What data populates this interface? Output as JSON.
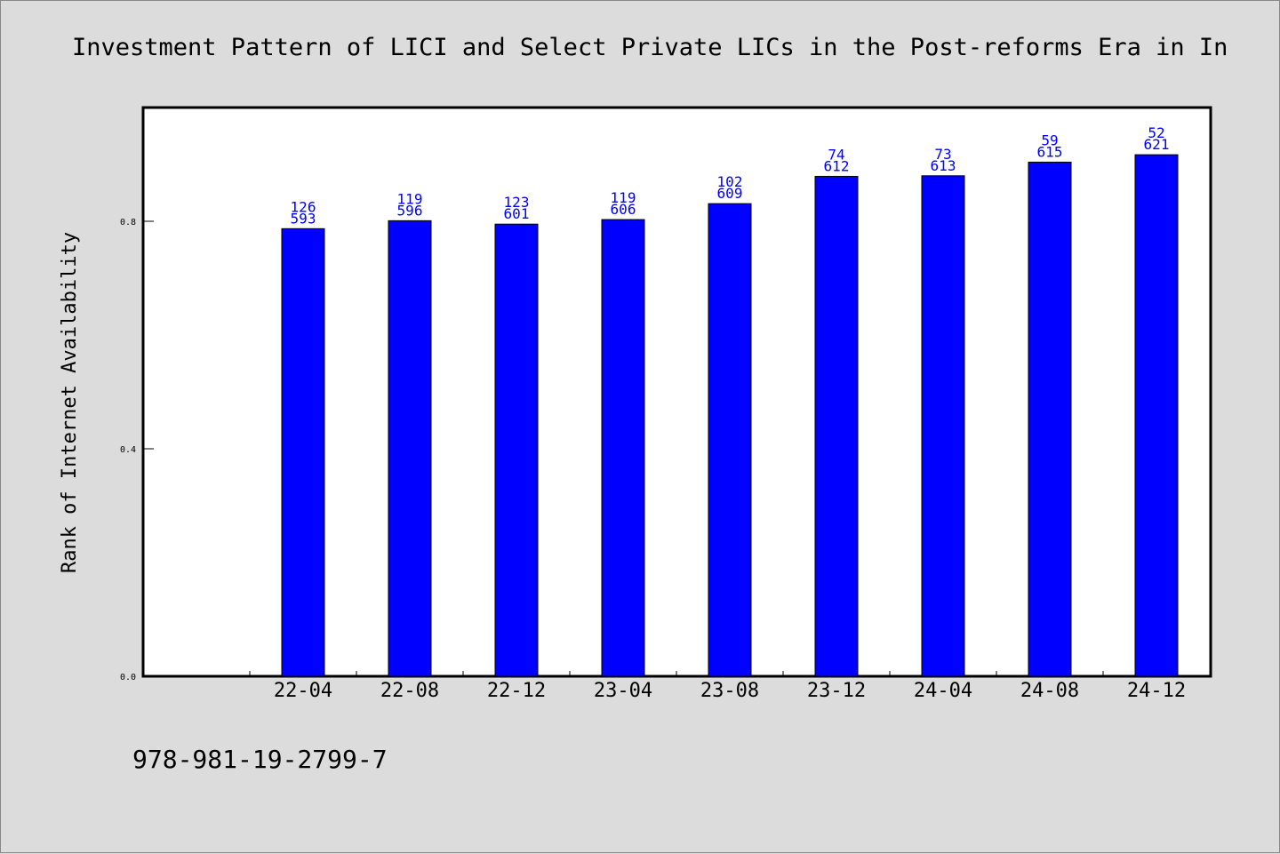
{
  "colors": {
    "background": "#dcdcdc",
    "plot_background": "#ffffff",
    "bar_fill": "#0000ff",
    "data_label": "#0000ff",
    "axis": "#000000"
  },
  "footer": {
    "isbn": "978-981-19-2799-7"
  },
  "chart_data": {
    "type": "bar",
    "title": "Investment Pattern of LICI and Select Private LICs in the Post-reforms Era in In",
    "xlabel": "",
    "ylabel": "Rank of Internet Availability",
    "ylim": [
      0,
      1.0
    ],
    "yticks": [
      0.0,
      0.4,
      0.8
    ],
    "ytick_labels": [
      "0.0",
      "0.4",
      "0.8"
    ],
    "grid": false,
    "legend": "none",
    "categories": [
      "22-04",
      "22-08",
      "22-12",
      "23-04",
      "23-08",
      "23-12",
      "24-04",
      "24-08",
      "24-12"
    ],
    "values": [
      0.787,
      0.801,
      0.795,
      0.803,
      0.831,
      0.879,
      0.88,
      0.904,
      0.917
    ],
    "labels_top": [
      "126",
      "119",
      "123",
      "119",
      "102",
      "74",
      "73",
      "59",
      "52"
    ],
    "labels_bottom": [
      "593",
      "596",
      "601",
      "606",
      "609",
      "612",
      "613",
      "615",
      "621"
    ]
  }
}
